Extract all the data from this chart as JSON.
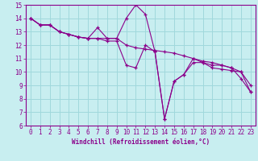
{
  "xlabel": "Windchill (Refroidissement éolien,°C)",
  "bg_color": "#c8eef0",
  "grid_color": "#a0d8dc",
  "line_color": "#8b008b",
  "spine_color": "#8b008b",
  "xlim": [
    -0.5,
    23.5
  ],
  "ylim": [
    6,
    15
  ],
  "xticks": [
    0,
    1,
    2,
    3,
    4,
    5,
    6,
    7,
    8,
    9,
    10,
    11,
    12,
    13,
    14,
    15,
    16,
    17,
    18,
    19,
    20,
    21,
    22,
    23
  ],
  "yticks": [
    6,
    7,
    8,
    9,
    10,
    11,
    12,
    13,
    14,
    15
  ],
  "series": [
    [
      14.0,
      13.5,
      13.5,
      13.0,
      12.8,
      12.6,
      12.5,
      12.5,
      12.5,
      12.5,
      12.0,
      11.8,
      11.7,
      11.6,
      11.5,
      11.4,
      11.2,
      11.0,
      10.8,
      10.7,
      10.5,
      10.3,
      9.5,
      8.5
    ],
    [
      14.0,
      13.5,
      13.5,
      13.0,
      12.8,
      12.6,
      12.5,
      13.3,
      12.5,
      12.5,
      14.0,
      15.0,
      14.3,
      11.5,
      6.5,
      9.3,
      9.8,
      10.7,
      10.7,
      10.3,
      10.2,
      10.1,
      10.0,
      9.0
    ],
    [
      14.0,
      13.5,
      13.5,
      13.0,
      12.8,
      12.6,
      12.5,
      12.5,
      12.3,
      12.3,
      10.5,
      10.3,
      12.0,
      11.5,
      6.5,
      9.3,
      9.8,
      11.0,
      10.7,
      10.5,
      10.5,
      10.3,
      10.0,
      8.5
    ]
  ],
  "tick_fontsize": 5.5,
  "label_fontsize": 5.5
}
